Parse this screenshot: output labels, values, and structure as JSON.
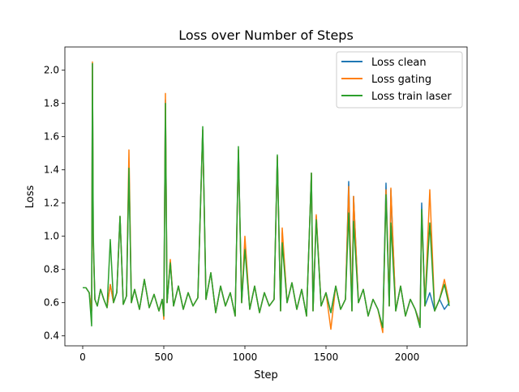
{
  "chart_data": {
    "type": "line",
    "title": "Loss over Number of Steps",
    "xlabel": "Step",
    "ylabel": "Loss",
    "xlim": [
      -110,
      2370
    ],
    "ylim": [
      0.34,
      2.14
    ],
    "xticks": [
      0,
      500,
      1000,
      1500,
      2000
    ],
    "yticks": [
      0.4,
      0.6,
      0.8,
      1.0,
      1.2,
      1.4,
      1.6,
      1.8,
      2.0
    ],
    "grid": false,
    "legend_position": "top-right",
    "series": [
      {
        "name": "Loss clean",
        "color": "#1f77b4",
        "x": [
          0,
          20,
          40,
          55,
          60,
          65,
          75,
          90,
          110,
          130,
          150,
          170,
          190,
          210,
          230,
          250,
          270,
          285,
          300,
          320,
          350,
          380,
          410,
          440,
          470,
          490,
          500,
          510,
          520,
          540,
          560,
          590,
          620,
          650,
          680,
          710,
          740,
          760,
          790,
          820,
          850,
          880,
          910,
          940,
          960,
          980,
          1000,
          1030,
          1060,
          1090,
          1120,
          1150,
          1180,
          1200,
          1220,
          1230,
          1260,
          1290,
          1320,
          1350,
          1380,
          1410,
          1420,
          1440,
          1470,
          1500,
          1530,
          1560,
          1590,
          1620,
          1640,
          1660,
          1670,
          1700,
          1730,
          1760,
          1790,
          1820,
          1850,
          1870,
          1890,
          1900,
          1930,
          1960,
          1990,
          2020,
          2050,
          2080,
          2090,
          2110,
          2140,
          2170,
          2200,
          2230,
          2260
        ],
        "y": [
          0.69,
          0.69,
          0.66,
          0.55,
          2.04,
          0.95,
          0.62,
          0.58,
          0.68,
          0.62,
          0.57,
          0.71,
          0.6,
          0.66,
          1.12,
          0.59,
          0.64,
          1.42,
          0.6,
          0.68,
          0.56,
          0.74,
          0.57,
          0.65,
          0.55,
          0.62,
          0.52,
          1.82,
          0.6,
          0.85,
          0.58,
          0.7,
          0.56,
          0.66,
          0.58,
          0.63,
          1.64,
          0.62,
          0.78,
          0.54,
          0.7,
          0.58,
          0.66,
          0.52,
          1.52,
          0.6,
          0.96,
          0.56,
          0.7,
          0.54,
          0.66,
          0.58,
          0.62,
          1.48,
          0.55,
          1.02,
          0.6,
          0.72,
          0.56,
          0.68,
          0.52,
          1.38,
          0.55,
          1.12,
          0.58,
          0.66,
          0.54,
          0.7,
          0.56,
          0.62,
          1.33,
          0.55,
          1.24,
          0.6,
          0.68,
          0.52,
          0.62,
          0.56,
          0.45,
          1.32,
          0.58,
          1.28,
          0.55,
          0.7,
          0.52,
          0.62,
          0.56,
          0.48,
          1.2,
          0.58,
          0.66,
          0.55,
          0.62,
          0.56,
          0.6
        ]
      },
      {
        "name": "Loss gating",
        "color": "#ff7f0e",
        "x": [
          0,
          20,
          40,
          55,
          60,
          65,
          75,
          90,
          110,
          130,
          150,
          170,
          190,
          210,
          230,
          250,
          270,
          285,
          300,
          320,
          350,
          380,
          410,
          440,
          470,
          490,
          500,
          510,
          520,
          540,
          560,
          590,
          620,
          650,
          680,
          710,
          740,
          760,
          790,
          820,
          850,
          880,
          910,
          940,
          960,
          980,
          1000,
          1030,
          1060,
          1090,
          1120,
          1150,
          1180,
          1200,
          1220,
          1230,
          1260,
          1290,
          1320,
          1350,
          1380,
          1410,
          1420,
          1440,
          1470,
          1500,
          1530,
          1560,
          1590,
          1620,
          1640,
          1660,
          1670,
          1700,
          1730,
          1760,
          1790,
          1820,
          1850,
          1870,
          1890,
          1900,
          1930,
          1960,
          1990,
          2020,
          2050,
          2080,
          2090,
          2110,
          2140,
          2170,
          2200,
          2230,
          2260
        ],
        "y": [
          0.69,
          0.69,
          0.66,
          0.55,
          2.05,
          0.95,
          0.62,
          0.58,
          0.68,
          0.62,
          0.57,
          0.71,
          0.6,
          0.66,
          1.12,
          0.59,
          0.64,
          1.52,
          0.6,
          0.68,
          0.56,
          0.74,
          0.57,
          0.65,
          0.55,
          0.62,
          0.5,
          1.86,
          0.6,
          0.86,
          0.58,
          0.7,
          0.56,
          0.66,
          0.58,
          0.63,
          1.64,
          0.62,
          0.78,
          0.54,
          0.7,
          0.58,
          0.66,
          0.52,
          1.52,
          0.6,
          1.0,
          0.56,
          0.7,
          0.54,
          0.66,
          0.58,
          0.62,
          1.48,
          0.55,
          1.05,
          0.6,
          0.72,
          0.56,
          0.68,
          0.52,
          1.38,
          0.55,
          1.13,
          0.58,
          0.66,
          0.44,
          0.7,
          0.56,
          0.62,
          1.3,
          0.55,
          1.24,
          0.6,
          0.68,
          0.52,
          0.62,
          0.56,
          0.42,
          1.28,
          0.58,
          1.29,
          0.55,
          0.7,
          0.52,
          0.62,
          0.56,
          0.47,
          1.14,
          0.58,
          1.28,
          0.55,
          0.62,
          0.74,
          0.6
        ]
      },
      {
        "name": "Loss train laser",
        "color": "#2ca02c",
        "x": [
          0,
          20,
          40,
          55,
          60,
          65,
          75,
          90,
          110,
          130,
          150,
          170,
          190,
          210,
          230,
          250,
          270,
          285,
          300,
          320,
          350,
          380,
          410,
          440,
          470,
          490,
          500,
          510,
          520,
          540,
          560,
          590,
          620,
          650,
          680,
          710,
          740,
          760,
          790,
          820,
          850,
          880,
          910,
          940,
          960,
          980,
          1000,
          1030,
          1060,
          1090,
          1120,
          1150,
          1180,
          1200,
          1220,
          1230,
          1260,
          1290,
          1320,
          1350,
          1380,
          1410,
          1420,
          1440,
          1470,
          1500,
          1530,
          1560,
          1590,
          1620,
          1640,
          1660,
          1670,
          1700,
          1730,
          1760,
          1790,
          1820,
          1850,
          1870,
          1890,
          1900,
          1930,
          1960,
          1990,
          2020,
          2050,
          2080,
          2090,
          2110,
          2140,
          2170,
          2200,
          2230,
          2260
        ],
        "y": [
          0.69,
          0.69,
          0.66,
          0.46,
          2.04,
          1.02,
          0.62,
          0.58,
          0.68,
          0.62,
          0.57,
          0.98,
          0.6,
          0.66,
          1.12,
          0.59,
          0.64,
          1.41,
          0.6,
          0.68,
          0.56,
          0.74,
          0.57,
          0.65,
          0.55,
          0.62,
          0.52,
          1.8,
          0.6,
          0.84,
          0.58,
          0.7,
          0.56,
          0.66,
          0.58,
          0.63,
          1.66,
          0.62,
          0.78,
          0.54,
          0.7,
          0.58,
          0.66,
          0.52,
          1.54,
          0.6,
          0.92,
          0.56,
          0.7,
          0.54,
          0.66,
          0.58,
          0.62,
          1.49,
          0.55,
          0.96,
          0.6,
          0.72,
          0.56,
          0.68,
          0.52,
          1.38,
          0.55,
          1.1,
          0.58,
          0.66,
          0.54,
          0.7,
          0.56,
          0.62,
          1.14,
          0.55,
          1.09,
          0.6,
          0.68,
          0.52,
          0.62,
          0.56,
          0.45,
          1.25,
          0.58,
          1.08,
          0.55,
          0.7,
          0.52,
          0.62,
          0.56,
          0.45,
          1.16,
          0.58,
          1.08,
          0.55,
          0.62,
          0.71,
          0.58
        ]
      }
    ]
  }
}
